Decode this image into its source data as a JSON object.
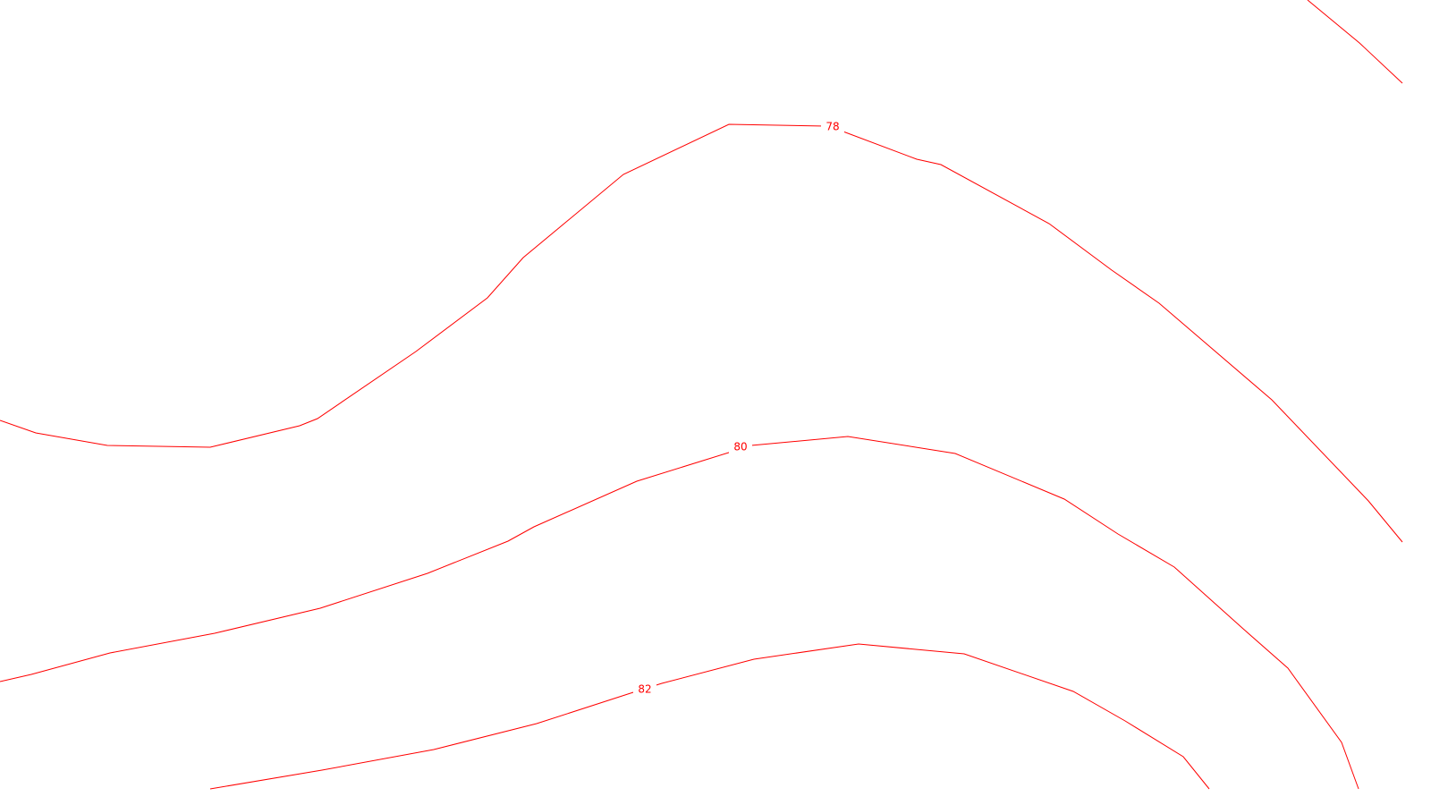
{
  "map": {
    "line_color": "#ff0000",
    "background_color": "#ffffff",
    "contours": [
      {
        "elevation_label": "78"
      },
      {
        "elevation_label": "80"
      },
      {
        "elevation_label": "82"
      },
      {
        "elevation_label": ""
      }
    ]
  }
}
